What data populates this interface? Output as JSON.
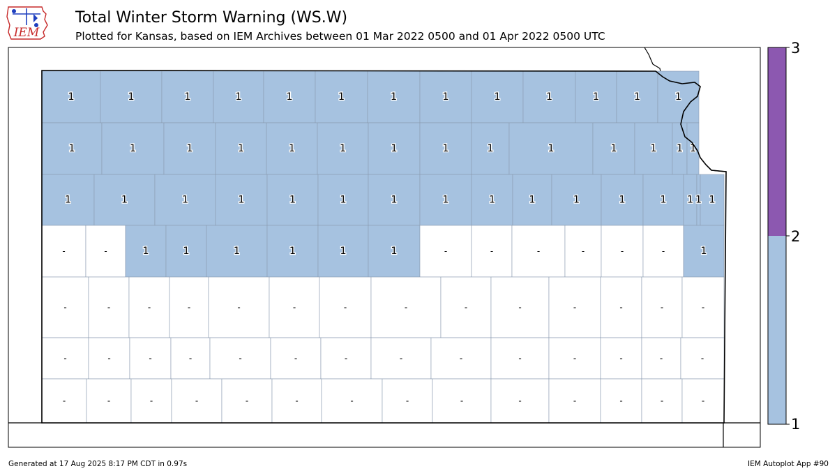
{
  "logo": {
    "text": "IEM"
  },
  "header": {
    "title": "Total Winter Storm Warning (WS.W)",
    "subtitle": "Plotted for Kansas, based on IEM Archives  between 01 Mar 2022 0500 and 01 Apr 2022 0500 UTC"
  },
  "legend": {
    "ticks": [
      "1",
      "2",
      "3"
    ],
    "colors": {
      "1": "#a6c2e0",
      "2": "#8c58b0"
    }
  },
  "colors": {
    "warned": "#a6c2e0",
    "unwarned": "#ffffff",
    "county_border": "#8a9bb0",
    "state_border": "#000000"
  },
  "footer": {
    "generated": "Generated at 17 Aug 2025 8:17 PM CDT in 0.97s",
    "app": "IEM Autoplot App #90"
  },
  "map_data": {
    "state": "Kansas",
    "value_labels": {
      "row1": [
        "1",
        "1",
        "1",
        "1",
        "1",
        "1",
        "1",
        "1",
        "1",
        "1",
        "1",
        "1",
        "1"
      ],
      "row2": [
        "1",
        "1",
        "1",
        "1",
        "1",
        "1",
        "1",
        "1",
        "1",
        "1",
        "1",
        "1",
        "1",
        "1"
      ],
      "row3": [
        "1",
        "1",
        "1",
        "1",
        "1",
        "1",
        "1",
        "1",
        "1",
        "1",
        "1",
        "1",
        "1",
        "1",
        "1"
      ],
      "row4": [
        "-",
        "-",
        "1",
        "1",
        "1",
        "1",
        "1",
        "1",
        "-",
        "-",
        "-",
        "-",
        "-",
        "-",
        "1"
      ],
      "row5": [
        "-",
        "-",
        "-",
        "-",
        "-",
        "-",
        "-",
        "-",
        "-",
        "-",
        "-",
        "-",
        "-"
      ],
      "row6": [
        "-",
        "-",
        "-",
        "-",
        "-",
        "-",
        "-",
        "-",
        "-",
        "-",
        "-",
        "-",
        "-",
        "-"
      ],
      "row7": [
        "-",
        "-",
        "-",
        "-",
        "-",
        "-",
        "-",
        "-",
        "-",
        "-",
        "-",
        "-",
        "-",
        "-",
        "-",
        "-"
      ],
      "row8": [
        "-",
        "-",
        "-",
        "-",
        "-",
        "-",
        "-",
        "-",
        "-",
        "-",
        "-",
        "-",
        "-",
        "-",
        "-",
        "-"
      ]
    }
  }
}
